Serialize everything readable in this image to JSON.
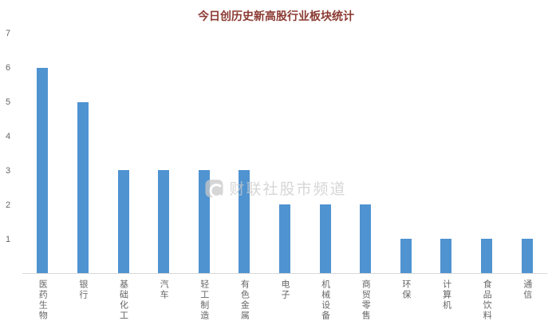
{
  "chart_data": {
    "type": "bar",
    "title": "今日创历史新高股行业板块统计",
    "categories": [
      "医药生物",
      "银行",
      "基础化工",
      "汽车",
      "轻工制造",
      "有色金属",
      "电子",
      "机械设备",
      "商贸零售",
      "环保",
      "计算机",
      "食品饮料",
      "通信"
    ],
    "values": [
      6,
      5,
      3,
      3,
      3,
      3,
      2,
      2,
      2,
      1,
      1,
      1,
      1
    ],
    "xlabel": "",
    "ylabel": "",
    "ylim": [
      0,
      7
    ],
    "yticks": [
      1,
      2,
      3,
      4,
      5,
      6,
      7
    ],
    "grid": false,
    "legend_position": "none",
    "watermark": "财联社股市频道",
    "colors": {
      "bar": "#4f93d1",
      "title": "#8b3a32",
      "axis_label": "#666666",
      "axis_line": "#d9d9d9",
      "watermark": "#c9c9c9"
    }
  }
}
